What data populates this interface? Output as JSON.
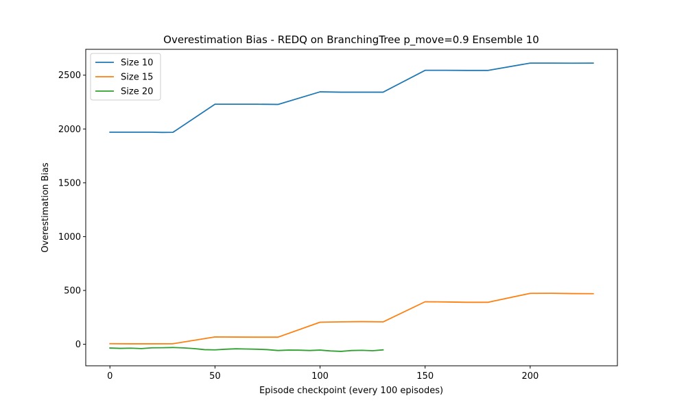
{
  "chart_data": {
    "type": "line",
    "title": "Overestimation Bias - REDQ on BranchingTree p_move=0.9 Ensemble 10",
    "xlabel": "Episode checkpoint (every 100 episodes)",
    "ylabel": "Overestimation Bias",
    "xlim": [
      -11.5,
      241.5
    ],
    "ylim": [
      -200,
      2740
    ],
    "xticks": [
      0,
      50,
      100,
      150,
      200
    ],
    "yticks": [
      0,
      500,
      1000,
      1500,
      2000,
      2500
    ],
    "grid": false,
    "legend_position": "top-left",
    "series": [
      {
        "name": "Size 10",
        "color": "#1f77b4",
        "x": [
          0,
          10,
          20,
          25,
          30,
          50,
          60,
          70,
          80,
          100,
          110,
          120,
          130,
          150,
          160,
          170,
          180,
          200,
          210,
          220,
          230
        ],
        "y": [
          1970,
          1970,
          1970,
          1968,
          1969,
          2230,
          2230,
          2230,
          2228,
          2345,
          2342,
          2342,
          2342,
          2545,
          2545,
          2544,
          2544,
          2612,
          2612,
          2611,
          2612
        ]
      },
      {
        "name": "Size 15",
        "color": "#ff7f0e",
        "x": [
          0,
          10,
          20,
          30,
          50,
          60,
          70,
          80,
          100,
          110,
          120,
          130,
          150,
          160,
          170,
          180,
          200,
          210,
          220,
          230
        ],
        "y": [
          5,
          4,
          4,
          5,
          68,
          67,
          66,
          66,
          205,
          208,
          210,
          208,
          395,
          393,
          390,
          390,
          473,
          474,
          471,
          470
        ]
      },
      {
        "name": "Size 20",
        "color": "#2ca02c",
        "x": [
          0,
          5,
          10,
          15,
          20,
          25,
          30,
          35,
          40,
          45,
          50,
          55,
          60,
          65,
          70,
          75,
          80,
          85,
          90,
          95,
          100,
          105,
          110,
          115,
          120,
          125,
          130
        ],
        "y": [
          -35,
          -38,
          -36,
          -40,
          -33,
          -32,
          -30,
          -34,
          -40,
          -50,
          -52,
          -46,
          -42,
          -44,
          -46,
          -50,
          -58,
          -54,
          -55,
          -58,
          -54,
          -62,
          -66,
          -58,
          -56,
          -60,
          -52
        ]
      }
    ]
  }
}
